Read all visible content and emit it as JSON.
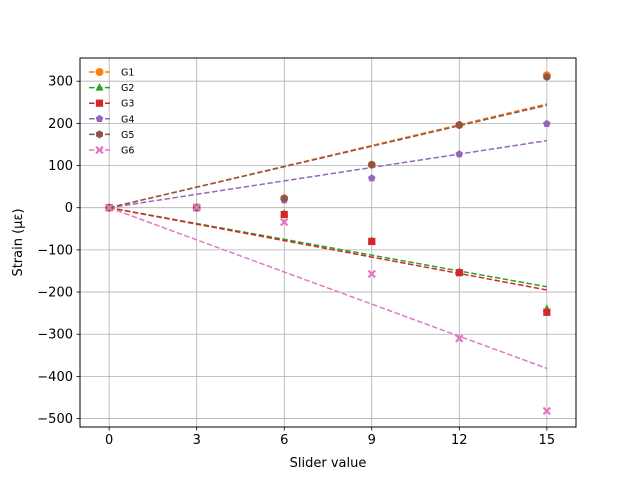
{
  "chart_data": {
    "type": "scatter",
    "title": "",
    "xlabel": "Slider value",
    "ylabel": "Strain (με)",
    "xlim": [
      -1,
      16
    ],
    "ylim": [
      -520,
      355
    ],
    "xticks": [
      0,
      3,
      6,
      9,
      12,
      15
    ],
    "yticks": [
      -500,
      -400,
      -300,
      -200,
      -100,
      0,
      100,
      200,
      300
    ],
    "grid": true,
    "legend_position": "upper-left",
    "x": [
      0,
      3,
      6,
      9,
      12,
      15
    ],
    "series": [
      {
        "name": "G1",
        "color": "#ff7f0e",
        "marker": "circle",
        "values": [
          0,
          0,
          22,
          102,
          196,
          314
        ],
        "fit_slope": 16.4
      },
      {
        "name": "G2",
        "color": "#2ca02c",
        "marker": "triangle",
        "values": [
          0,
          1,
          -14,
          -78,
          -152,
          -240
        ],
        "fit_slope": -12.5
      },
      {
        "name": "G3",
        "color": "#d62728",
        "marker": "square",
        "values": [
          0,
          0,
          -16,
          -80,
          -154,
          -248
        ],
        "fit_slope": -13.0
      },
      {
        "name": "G4",
        "color": "#9467bd",
        "marker": "pentagon",
        "values": [
          0,
          0,
          18,
          70,
          127,
          199
        ],
        "fit_slope": 10.6
      },
      {
        "name": "G5",
        "color": "#8c564b",
        "marker": "hexagon",
        "values": [
          0,
          0,
          22,
          102,
          196,
          310
        ],
        "fit_slope": 16.2
      },
      {
        "name": "G6",
        "color": "#e377c2",
        "marker": "x",
        "values": [
          0,
          1,
          -34,
          -157,
          -310,
          -482
        ],
        "fit_slope": -25.4
      }
    ]
  }
}
